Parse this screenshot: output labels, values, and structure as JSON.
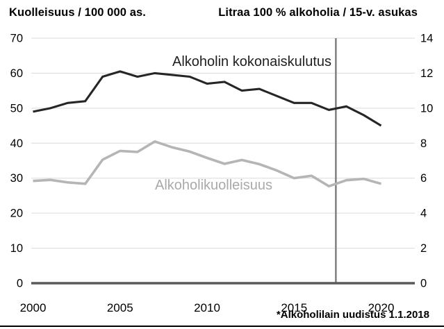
{
  "chart_data": {
    "type": "line",
    "x": [
      2000,
      2001,
      2002,
      2003,
      2004,
      2005,
      2006,
      2007,
      2008,
      2009,
      2010,
      2011,
      2012,
      2013,
      2014,
      2015,
      2016,
      2017,
      2018,
      2019,
      2020
    ],
    "x_ticks": [
      2000,
      2005,
      2010,
      2015,
      2020
    ],
    "left_axis": {
      "title": "Kuolleisuus / 100 000 as.",
      "range": [
        0,
        70
      ],
      "ticks": [
        0,
        10,
        20,
        30,
        40,
        50,
        60,
        70
      ]
    },
    "right_axis": {
      "title": "Litraa 100 % alkoholia / 15-v. asukas",
      "range": [
        0,
        14
      ],
      "ticks": [
        0,
        2,
        4,
        6,
        8,
        10,
        12,
        14
      ]
    },
    "series": [
      {
        "name": "Alkoholin kokonaiskulutus",
        "key": "consumption",
        "axis": "right",
        "color": "#262626",
        "values": [
          9.8,
          10.0,
          10.3,
          10.4,
          11.8,
          12.1,
          11.8,
          12.0,
          11.9,
          11.8,
          11.4,
          11.5,
          11.0,
          11.1,
          10.7,
          10.3,
          10.3,
          9.9,
          10.1,
          9.6,
          9.0
        ]
      },
      {
        "name": "Alkoholikuolleisuus",
        "key": "mortality",
        "axis": "left",
        "color": "#b5b5b5",
        "values": [
          29.2,
          29.5,
          28.8,
          28.4,
          35.3,
          37.8,
          37.5,
          40.5,
          38.8,
          37.6,
          35.8,
          34.1,
          35.2,
          34.0,
          32.2,
          30.0,
          30.7,
          27.7,
          29.4,
          29.8,
          28.4
        ]
      }
    ],
    "marker": {
      "x_year": 2017.4,
      "color": "#7f7f7f"
    },
    "annotation": "*Alkoholilain uudistus 1.1.2018",
    "grid": "horizontal",
    "legend": "inline-labels",
    "colors": {
      "gridline": "#d9d9d9",
      "axis_line": "#595959",
      "background": "#ffffff"
    }
  }
}
